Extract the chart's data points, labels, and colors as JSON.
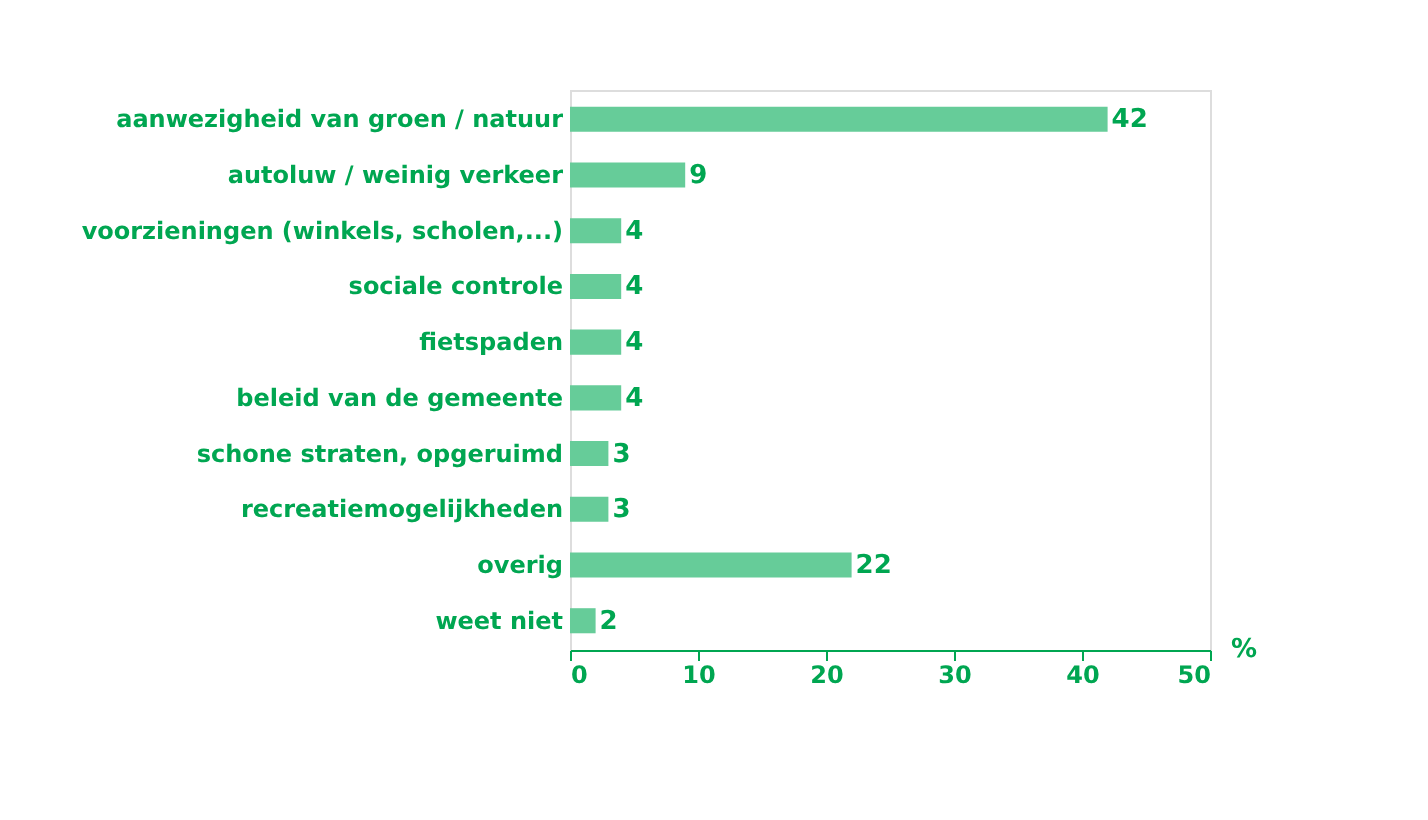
{
  "chart_data": {
    "type": "bar",
    "orientation": "horizontal",
    "categories": [
      "aanwezigheid van groen / natuur",
      "autoluw / weinig verkeer",
      "voorzieningen (winkels, scholen,...)",
      "sociale controle",
      "fietspaden",
      "beleid van de gemeente",
      "schone straten, opgeruimd",
      "recreatiemogelijkheden",
      "overig",
      "weet niet"
    ],
    "values": [
      42,
      9,
      4,
      4,
      4,
      4,
      3,
      3,
      22,
      2
    ],
    "color": "#66cc99",
    "xlabel": "%",
    "xlim": [
      0,
      50
    ],
    "xticks": [
      0,
      10,
      20,
      30,
      40,
      50
    ],
    "data_labels": true,
    "grid": false
  }
}
